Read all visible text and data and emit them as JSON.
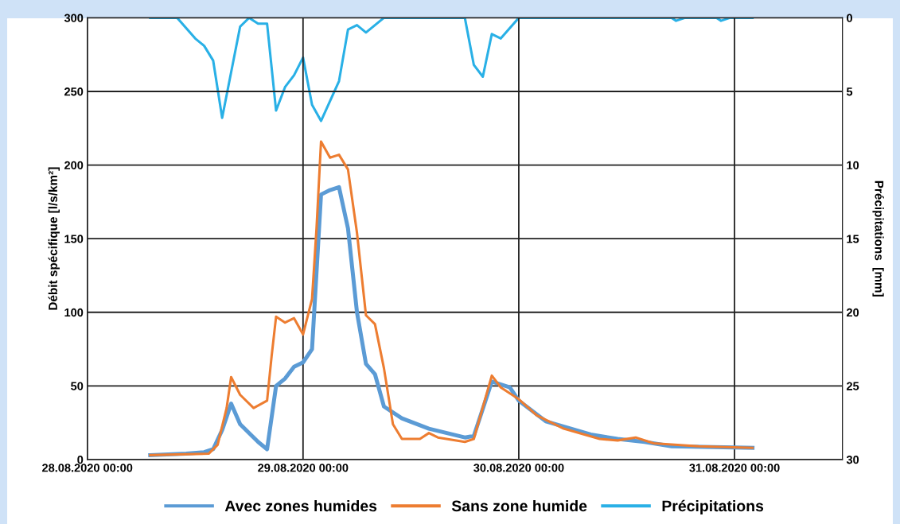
{
  "chart_data": {
    "type": "line",
    "ylabel": "Débit spécifique [l/s/km²]",
    "y2label": "Précipitations  [mm]",
    "xlim": [
      "2020-08-28T00:00",
      "2020-08-31T12:00"
    ],
    "xticks": [
      {
        "value": "2020-08-28T00:00",
        "label": "28.08.2020 00:00"
      },
      {
        "value": "2020-08-29T00:00",
        "label": "29.08.2020 00:00"
      },
      {
        "value": "2020-08-30T00:00",
        "label": "30.08.2020 00:00"
      },
      {
        "value": "2020-08-31T00:00",
        "label": "31.08.2020 00:00"
      }
    ],
    "ylim": [
      0,
      300
    ],
    "yticks": [
      0,
      50,
      100,
      150,
      200,
      250,
      300
    ],
    "y2lim": [
      30,
      0
    ],
    "y2ticks": [
      0,
      5,
      10,
      15,
      20,
      25,
      30
    ],
    "grid": true,
    "legend": "bottom",
    "marker": "none",
    "line_style": "solid",
    "series": [
      {
        "name": "Avec zones humides",
        "color": "#5b9bd5",
        "x": [
          "2020-08-28T07:00",
          "2020-08-28T11:00",
          "2020-08-28T13:00",
          "2020-08-28T14:00",
          "2020-08-28T15:00",
          "2020-08-28T16:00",
          "2020-08-28T17:00",
          "2020-08-28T19:00",
          "2020-08-28T20:00",
          "2020-08-28T21:00",
          "2020-08-28T22:00",
          "2020-08-28T23:00",
          "2020-08-29T00:00",
          "2020-08-29T01:00",
          "2020-08-29T02:00",
          "2020-08-29T03:00",
          "2020-08-29T04:00",
          "2020-08-29T05:00",
          "2020-08-29T06:00",
          "2020-08-29T07:00",
          "2020-08-29T08:00",
          "2020-08-29T09:00",
          "2020-08-29T11:00",
          "2020-08-29T14:00",
          "2020-08-29T18:00",
          "2020-08-29T19:00",
          "2020-08-29T21:00",
          "2020-08-29T23:00",
          "2020-08-30T00:00",
          "2020-08-30T03:00",
          "2020-08-30T08:00",
          "2020-08-30T11:00",
          "2020-08-30T14:00",
          "2020-08-30T17:00",
          "2020-08-31T02:00"
        ],
        "values": [
          3,
          4,
          5,
          7,
          20,
          38,
          24,
          12,
          7,
          50,
          55,
          63,
          66,
          75,
          180,
          183,
          185,
          157,
          100,
          65,
          58,
          36,
          28,
          21,
          15,
          16,
          53,
          49,
          40,
          26,
          17,
          14,
          12,
          9,
          8
        ]
      },
      {
        "name": "Sans zone humide",
        "color": "#ed7d31",
        "x": [
          "2020-08-28T07:00",
          "2020-08-28T13:30",
          "2020-08-28T14:30",
          "2020-08-28T15:30",
          "2020-08-28T16:00",
          "2020-08-28T17:00",
          "2020-08-28T18:30",
          "2020-08-28T20:00",
          "2020-08-28T20:30",
          "2020-08-28T21:00",
          "2020-08-28T22:00",
          "2020-08-28T23:00",
          "2020-08-29T00:00",
          "2020-08-29T01:00",
          "2020-08-29T01:30",
          "2020-08-29T02:00",
          "2020-08-29T03:00",
          "2020-08-29T04:00",
          "2020-08-29T05:00",
          "2020-08-29T06:00",
          "2020-08-29T07:00",
          "2020-08-29T08:00",
          "2020-08-29T09:00",
          "2020-08-29T10:00",
          "2020-08-29T11:00",
          "2020-08-29T12:00",
          "2020-08-29T13:00",
          "2020-08-29T14:00",
          "2020-08-29T15:00",
          "2020-08-29T18:00",
          "2020-08-29T19:00",
          "2020-08-29T21:00",
          "2020-08-29T22:00",
          "2020-08-30T00:00",
          "2020-08-30T02:00",
          "2020-08-30T05:00",
          "2020-08-30T09:00",
          "2020-08-30T11:00",
          "2020-08-30T13:00",
          "2020-08-30T15:00",
          "2020-08-30T20:00",
          "2020-08-31T02:00"
        ],
        "values": [
          3,
          4,
          10,
          35,
          56,
          44,
          35,
          40,
          70,
          97,
          93,
          96,
          85,
          109,
          157,
          216,
          205,
          207,
          197,
          154,
          98,
          92,
          62,
          24,
          14,
          14,
          14,
          18,
          15,
          12,
          14,
          57,
          49,
          41,
          30,
          21,
          14,
          13,
          15,
          11,
          9,
          8
        ]
      },
      {
        "name": "Précipitations",
        "color": "#29b0e6",
        "axis": "y2",
        "x": [
          "2020-08-28T07:00",
          "2020-08-28T10:00",
          "2020-08-28T12:00",
          "2020-08-28T13:00",
          "2020-08-28T14:00",
          "2020-08-28T15:00",
          "2020-08-28T17:00",
          "2020-08-28T18:00",
          "2020-08-28T19:00",
          "2020-08-28T20:00",
          "2020-08-28T21:00",
          "2020-08-28T22:00",
          "2020-08-28T23:00",
          "2020-08-29T00:00",
          "2020-08-29T01:00",
          "2020-08-29T02:00",
          "2020-08-29T04:00",
          "2020-08-29T05:00",
          "2020-08-29T06:00",
          "2020-08-29T07:00",
          "2020-08-29T09:00",
          "2020-08-29T18:00",
          "2020-08-29T19:00",
          "2020-08-29T20:00",
          "2020-08-29T21:00",
          "2020-08-29T22:00",
          "2020-08-30T00:00",
          "2020-08-30T17:00",
          "2020-08-30T17:30",
          "2020-08-30T18:30",
          "2020-08-30T22:00",
          "2020-08-30T22:30",
          "2020-08-30T23:30",
          "2020-08-31T02:00"
        ],
        "values": [
          0,
          0,
          1.4,
          1.9,
          2.9,
          6.8,
          0.6,
          0,
          0.4,
          0.4,
          6.3,
          4.7,
          3.9,
          2.7,
          5.9,
          7.0,
          4.3,
          0.8,
          0.5,
          1.0,
          0,
          0,
          3.2,
          4.0,
          1.1,
          1.4,
          0,
          0,
          0.2,
          0,
          0,
          0.2,
          0,
          0
        ]
      }
    ]
  }
}
